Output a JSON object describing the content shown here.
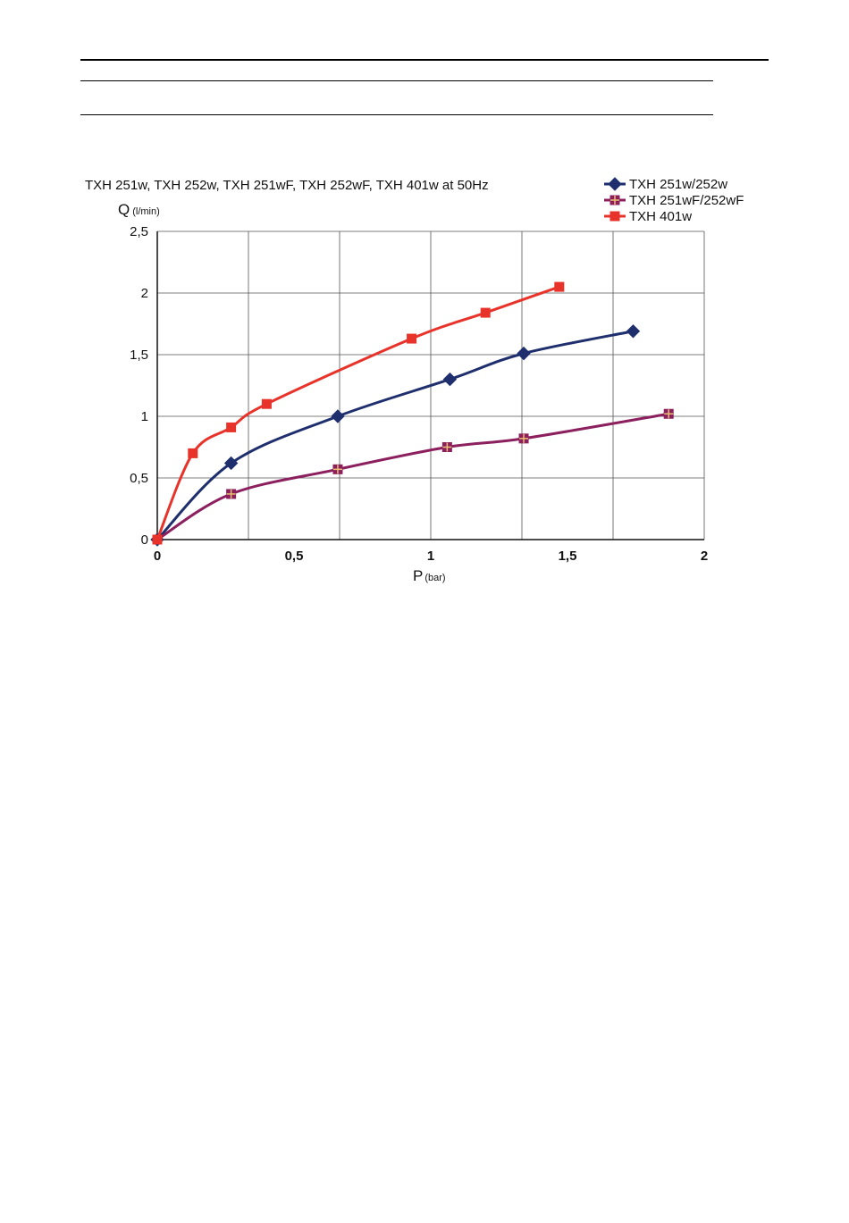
{
  "chart_data": {
    "type": "line",
    "title": "TXH 251w, TXH 252w, TXH 251wF, TXH 252wF, TXH 401w at 50Hz",
    "ylabel_main": "Q",
    "ylabel_unit": "(l/min)",
    "xlabel_main": "P",
    "xlabel_unit": "(bar)",
    "xlim": [
      0,
      2
    ],
    "ylim": [
      0,
      2.5
    ],
    "x_ticks": [
      "0",
      "0,5",
      "1",
      "1,5",
      "2"
    ],
    "y_ticks": [
      "0",
      "0,5",
      "1",
      "1,5",
      "2",
      "2,5"
    ],
    "x_tick_values": [
      0,
      0.5,
      1,
      1.5,
      2
    ],
    "y_tick_values": [
      0,
      0.5,
      1,
      1.5,
      2,
      2.5
    ],
    "grid": true,
    "legend_position": "top-right",
    "series": [
      {
        "name": "TXH 251w/252w",
        "color": "#1f2f6e",
        "marker": "diamond",
        "x": [
          0,
          0.27,
          0.66,
          1.07,
          1.34,
          1.74
        ],
        "y": [
          0,
          0.62,
          1.0,
          1.3,
          1.51,
          1.69
        ]
      },
      {
        "name": "TXH 251wF/252wF",
        "color": "#8c1f5e",
        "marker": "square",
        "x": [
          0,
          0.27,
          0.66,
          1.06,
          1.34,
          1.87
        ],
        "y": [
          0,
          0.37,
          0.57,
          0.75,
          0.82,
          1.02
        ]
      },
      {
        "name": "TXH 401w",
        "color": "#e8332a",
        "marker": "square",
        "x": [
          0,
          0.13,
          0.27,
          0.4,
          0.93,
          1.2,
          1.47
        ],
        "y": [
          0,
          0.7,
          0.91,
          1.1,
          1.63,
          1.84,
          2.05
        ]
      }
    ]
  }
}
